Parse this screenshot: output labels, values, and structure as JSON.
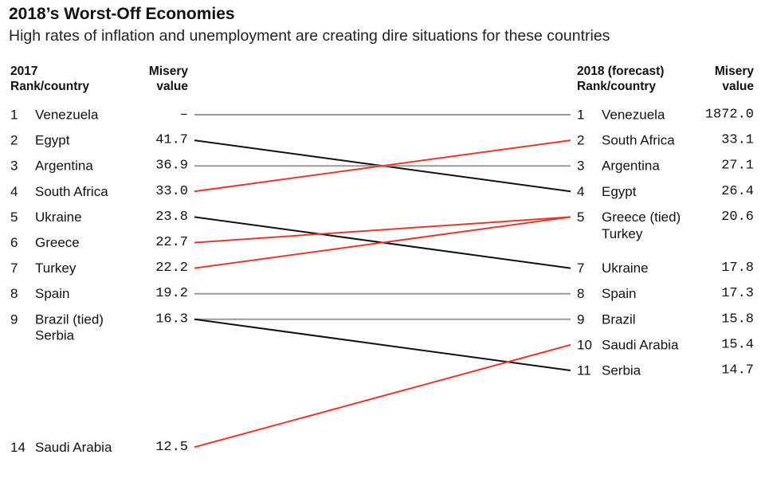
{
  "header": {
    "title": "2018’s Worst-Off Economies",
    "subtitle": "High rates of inflation and unemployment are creating dire situations for these countries"
  },
  "columns": {
    "left_rank": "2017\nRank/country",
    "left_value": "Misery\nvalue",
    "right_rank": "2018 (forecast)\nRank/country",
    "right_value": "Misery\nvalue"
  },
  "chart_data": {
    "type": "slope",
    "rank_range": [
      1,
      14
    ],
    "colors": {
      "improved": "#999999",
      "worsened": "#111111",
      "up": "#e8382d",
      "neutral": "#999999"
    },
    "left": [
      {
        "rank": 1,
        "rank_label": "1",
        "country": "Venezuela",
        "value_label": "–",
        "value": null
      },
      {
        "rank": 2,
        "rank_label": "2",
        "country": "Egypt",
        "value_label": "41.7",
        "value": 41.7
      },
      {
        "rank": 3,
        "rank_label": "3",
        "country": "Argentina",
        "value_label": "36.9",
        "value": 36.9
      },
      {
        "rank": 4,
        "rank_label": "4",
        "country": "South Africa",
        "value_label": "33.0",
        "value": 33.0
      },
      {
        "rank": 5,
        "rank_label": "5",
        "country": "Ukraine",
        "value_label": "23.8",
        "value": 23.8
      },
      {
        "rank": 6,
        "rank_label": "6",
        "country": "Greece",
        "value_label": "22.7",
        "value": 22.7
      },
      {
        "rank": 7,
        "rank_label": "7",
        "country": "Turkey",
        "value_label": "22.2",
        "value": 22.2
      },
      {
        "rank": 8,
        "rank_label": "8",
        "country": "Spain",
        "value_label": "19.2",
        "value": 19.2
      },
      {
        "rank": 9,
        "rank_label": "9",
        "country": "Brazil (tied)",
        "country2": "Serbia",
        "value_label": "16.3",
        "value": 16.3
      },
      {
        "rank": 14,
        "rank_label": "14",
        "country": "Saudi Arabia",
        "value_label": "12.5",
        "value": 12.5
      }
    ],
    "right": [
      {
        "rank": 1,
        "rank_label": "1",
        "country": "Venezuela",
        "value_label": "1872.0",
        "value": 1872.0
      },
      {
        "rank": 2,
        "rank_label": "2",
        "country": "South Africa",
        "value_label": "33.1",
        "value": 33.1
      },
      {
        "rank": 3,
        "rank_label": "3",
        "country": "Argentina",
        "value_label": "27.1",
        "value": 27.1
      },
      {
        "rank": 4,
        "rank_label": "4",
        "country": "Egypt",
        "value_label": "26.4",
        "value": 26.4
      },
      {
        "rank": 5,
        "rank_label": "5",
        "country": "Greece (tied)",
        "country2": "Turkey",
        "value_label": "20.6",
        "value": 20.6
      },
      {
        "rank": 7,
        "rank_label": "7",
        "country": "Ukraine",
        "value_label": "17.8",
        "value": 17.8
      },
      {
        "rank": 8,
        "rank_label": "8",
        "country": "Spain",
        "value_label": "17.3",
        "value": 17.3
      },
      {
        "rank": 9,
        "rank_label": "9",
        "country": "Brazil",
        "value_label": "15.8",
        "value": 15.8
      },
      {
        "rank": 10,
        "rank_label": "10",
        "country": "Saudi Arabia",
        "value_label": "15.4",
        "value": 15.4
      },
      {
        "rank": 11,
        "rank_label": "11",
        "country": "Serbia",
        "value_label": "14.7",
        "value": 14.7
      }
    ],
    "lines": [
      {
        "country": "Venezuela",
        "from_rank": 1,
        "to_rank": 1,
        "color": "gray"
      },
      {
        "country": "Egypt",
        "from_rank": 2,
        "to_rank": 4,
        "color": "black"
      },
      {
        "country": "Argentina",
        "from_rank": 3,
        "to_rank": 3,
        "color": "gray"
      },
      {
        "country": "South Africa",
        "from_rank": 4,
        "to_rank": 2,
        "color": "red"
      },
      {
        "country": "Ukraine",
        "from_rank": 5,
        "to_rank": 7,
        "color": "black"
      },
      {
        "country": "Greece",
        "from_rank": 6,
        "to_rank": 5,
        "color": "red"
      },
      {
        "country": "Turkey",
        "from_rank": 7,
        "to_rank": 5,
        "color": "red"
      },
      {
        "country": "Spain",
        "from_rank": 8,
        "to_rank": 8,
        "color": "gray"
      },
      {
        "country": "Brazil",
        "from_rank": 9,
        "to_rank": 9,
        "color": "gray"
      },
      {
        "country": "Serbia",
        "from_rank": 9,
        "to_rank": 11,
        "color": "black"
      },
      {
        "country": "Saudi Arabia",
        "from_rank": 14,
        "to_rank": 10,
        "color": "red"
      }
    ]
  }
}
